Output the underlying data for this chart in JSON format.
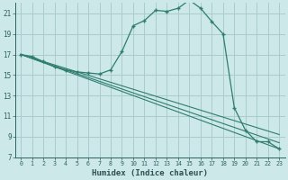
{
  "xlabel": "Humidex (Indice chaleur)",
  "bg_color": "#cce8e8",
  "grid_color": "#aacccc",
  "line_color": "#2e7d6e",
  "xlim": [
    -0.5,
    23.5
  ],
  "ylim": [
    7,
    22
  ],
  "yticks": [
    7,
    9,
    11,
    13,
    15,
    17,
    19,
    21
  ],
  "xticks": [
    0,
    1,
    2,
    3,
    4,
    5,
    6,
    7,
    8,
    9,
    10,
    11,
    12,
    13,
    14,
    15,
    16,
    17,
    18,
    19,
    20,
    21,
    22,
    23
  ],
  "main_series": {
    "x": [
      0,
      1,
      2,
      3,
      4,
      5,
      6,
      7,
      8,
      9,
      10,
      11,
      12,
      13,
      14,
      15,
      16,
      17,
      18,
      19,
      20,
      21,
      22,
      23
    ],
    "y": [
      17.0,
      16.8,
      16.3,
      15.8,
      15.5,
      15.3,
      15.2,
      15.1,
      15.5,
      17.3,
      19.8,
      20.3,
      21.3,
      21.2,
      21.5,
      22.3,
      21.5,
      20.2,
      19.0,
      11.8,
      9.6,
      8.5,
      8.5,
      7.8
    ]
  },
  "linear_series": [
    {
      "x": [
        0,
        23
      ],
      "y": [
        17.0,
        7.8
      ]
    },
    {
      "x": [
        0,
        23
      ],
      "y": [
        17.0,
        8.4
      ]
    },
    {
      "x": [
        0,
        23
      ],
      "y": [
        17.0,
        9.2
      ]
    }
  ]
}
